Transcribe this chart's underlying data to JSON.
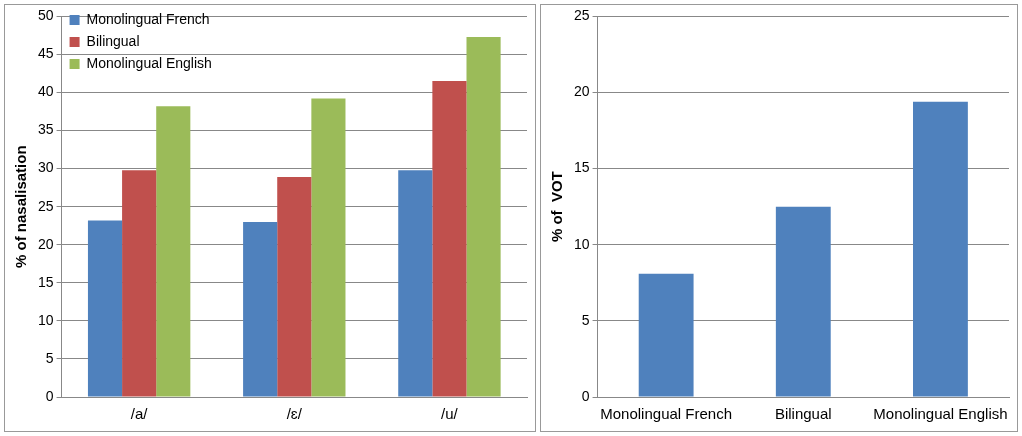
{
  "chart_data": [
    {
      "type": "bar",
      "ylabel": "% of nasalisation",
      "categories": [
        "/a/",
        "/ɛ/",
        "/u/"
      ],
      "series": [
        {
          "name": "Monolingual French",
          "color": "#4f81bd",
          "values": [
            23.2,
            23.0,
            29.8
          ]
        },
        {
          "name": "Bilingual",
          "color": "#c0504d",
          "values": [
            29.8,
            28.9,
            41.5
          ]
        },
        {
          "name": "Monolingual English",
          "color": "#9bbb59",
          "values": [
            38.2,
            39.2,
            47.3
          ]
        }
      ],
      "ylim": [
        0,
        50
      ],
      "yticks": [
        0,
        5,
        10,
        15,
        20,
        25,
        30,
        35,
        40,
        45,
        50
      ],
      "grid": "y",
      "legend": "top left"
    },
    {
      "type": "bar",
      "ylabel": "% of  VOT",
      "categories": [
        "Monolingual French",
        "Bilingual",
        "Monolingual English"
      ],
      "values": [
        8.1,
        12.5,
        19.4
      ],
      "color": "#4f81bd",
      "ylim": [
        0,
        25
      ],
      "yticks": [
        0,
        5,
        10,
        15,
        20,
        25
      ],
      "grid": "y"
    }
  ]
}
